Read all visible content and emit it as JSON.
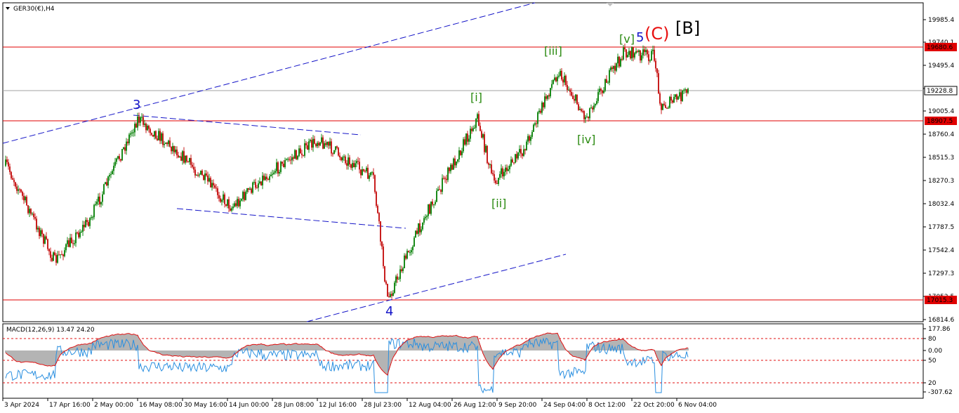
{
  "symbol_title": "GER30(€),H4",
  "macd_label": "MACD(12,26,9) 13.47 24.20",
  "colors": {
    "bull": "#1a8a1a",
    "bear": "#c81e1e",
    "level": "#e00000",
    "channel": "#1515c8",
    "macd_line": "#2a8fe0",
    "signal_line": "#e01010",
    "histogram": "#b4b4b4",
    "wave_blue": "#1515c8",
    "wave_green": "#2a8a10",
    "wave_red": "#e81010",
    "wave_black": "#000000"
  },
  "price_axis_ticks": [
    "19985.4",
    "19740.1",
    "19495.4",
    "19250.1",
    "19005.4",
    "18760.4",
    "18515.3",
    "18270.3",
    "18032.4",
    "17787.5",
    "17542.4",
    "17297.3",
    "17052.5",
    "16814.6"
  ],
  "price_levels": [
    {
      "price": 19680.6,
      "label": "19680.6",
      "style": "red"
    },
    {
      "price": 19228.8,
      "label": "19228.8",
      "style": "grey"
    },
    {
      "price": 18907.5,
      "label": "18907.5",
      "style": "red"
    },
    {
      "price": 17015.3,
      "label": "17015.3",
      "style": "red"
    }
  ],
  "macd_axis_ticks": [
    "177.86",
    "80",
    "0.00",
    "50",
    "20",
    "-307.62"
  ],
  "time_axis_labels": [
    "3 Apr 2024",
    "17 Apr 16:00",
    "2 May 00:00",
    "16 May 08:00",
    "30 May 16:00",
    "14 Jun 00:00",
    "28 Jun 08:00",
    "12 Jul 16:00",
    "28 Jul 23:00",
    "12 Aug 04:00",
    "26 Aug 12:00",
    "9 Sep 20:00",
    "24 Sep 04:00",
    "8 Oct 12:00",
    "22 Oct 20:00",
    "6 Nov 04:00"
  ],
  "wave_labels": [
    {
      "text": "3",
      "color": "wave_blue"
    },
    {
      "text": "4",
      "color": "wave_blue"
    },
    {
      "text": "[i]",
      "color": "wave_green"
    },
    {
      "text": "[ii]",
      "color": "wave_green"
    },
    {
      "text": "[iii]",
      "color": "wave_green"
    },
    {
      "text": "[iv]",
      "color": "wave_green"
    },
    {
      "text": "[v]",
      "color": "wave_green"
    },
    {
      "text": "5",
      "color": "wave_blue"
    },
    {
      "text": "(C)",
      "color": "wave_red"
    },
    {
      "text": "[B]",
      "color": "wave_black"
    }
  ],
  "chart_data": {
    "type": "candlestick",
    "symbol": "GER30(€)",
    "timeframe": "H4",
    "ylim": [
      16814.6,
      20100
    ],
    "key_points": [
      {
        "time": "3 Apr 2024",
        "price": 18440
      },
      {
        "time": "17 Apr 16:00",
        "price": 17430
      },
      {
        "time": "2 May 00:00",
        "price": 17900
      },
      {
        "time": "16 May 08:00",
        "price": 18940
      },
      {
        "time": "30 May 16:00",
        "price": 18600
      },
      {
        "time": "14 Jun 00:00",
        "price": 18000
      },
      {
        "time": "28 Jun 08:00",
        "price": 18300
      },
      {
        "time": "12 Jul 16:00",
        "price": 18720
      },
      {
        "time": "28 Jul 23:00",
        "price": 18300
      },
      {
        "time": "5 Aug",
        "price": 17020
      },
      {
        "time": "12 Aug 04:00",
        "price": 17800
      },
      {
        "time": "26 Aug 12:00",
        "price": 18950
      },
      {
        "time": "2 Sep",
        "price": 18260
      },
      {
        "time": "9 Sep 20:00",
        "price": 18600
      },
      {
        "time": "24 Sep 04:00",
        "price": 19450
      },
      {
        "time": "1 Oct",
        "price": 18950
      },
      {
        "time": "8 Oct 12:00",
        "price": 19200
      },
      {
        "time": "15 Oct",
        "price": 19640
      },
      {
        "time": "22 Oct 20:00",
        "price": 19600
      },
      {
        "time": "30 Oct",
        "price": 19050
      },
      {
        "time": "6 Nov 04:00",
        "price": 19228.8
      }
    ],
    "macd": {
      "fast": 12,
      "slow": 26,
      "signal": 9,
      "value": 13.47,
      "signal_value": 24.2,
      "ylim": [
        -307.62,
        177.86
      ]
    },
    "grid": false
  }
}
